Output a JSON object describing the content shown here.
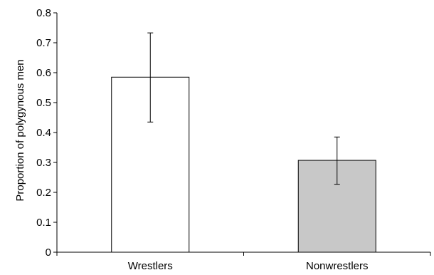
{
  "chart_data": {
    "type": "bar",
    "title": "",
    "xlabel": "",
    "ylabel": "Proportion of polygynous men",
    "categories": [
      "Wrestlers",
      "Nonwrestlers"
    ],
    "values": [
      0.585,
      0.307
    ],
    "error_low": [
      0.435,
      0.227
    ],
    "error_high": [
      0.733,
      0.385
    ],
    "bar_colors": [
      "#ffffff",
      "#c8c8c8"
    ],
    "ylim": [
      0,
      0.8
    ],
    "yticks": [
      0,
      0.1,
      0.2,
      0.3,
      0.4,
      0.5,
      0.6,
      0.7,
      0.8
    ],
    "ytick_labels": [
      "0",
      "0.1",
      "0.2",
      "0.3",
      "0.4",
      "0.5",
      "0.6",
      "0.7",
      "0.8"
    ],
    "grid": false,
    "legend": "none"
  }
}
